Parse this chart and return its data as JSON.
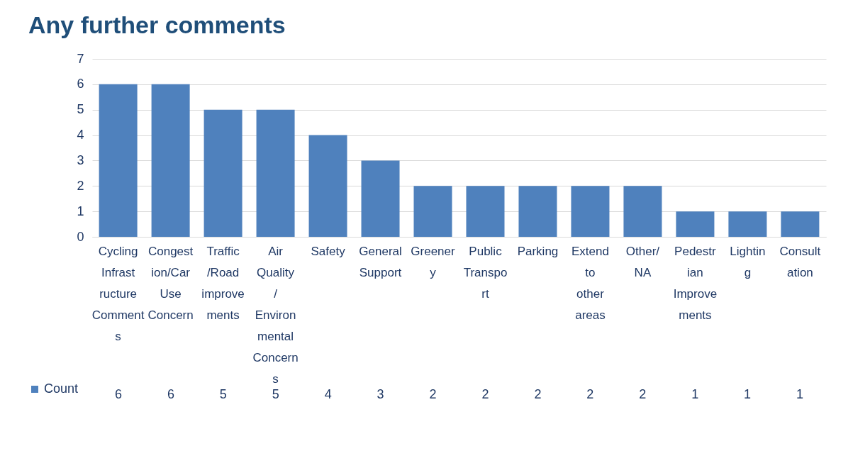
{
  "chart_data": {
    "type": "bar",
    "title": "Any further comments",
    "categories": [
      "Cycling Infrastructure Comments",
      "Congestion/Car Use Concern",
      "Traffic/Road improvements",
      "Air Quality/Environmental Concerns",
      "Safety",
      "General Support",
      "Greenery",
      "Public Transport",
      "Parking",
      "Extend to other areas",
      "Other/NA",
      "Pedestrian Improvements",
      "Lighting",
      "Consultation"
    ],
    "series": [
      {
        "name": "Count",
        "color": "#4f81bd",
        "values": [
          6,
          6,
          5,
          5,
          4,
          3,
          2,
          2,
          2,
          2,
          2,
          1,
          1,
          1
        ]
      }
    ],
    "ylim": [
      0,
      7
    ],
    "yticks": [
      0,
      1,
      2,
      3,
      4,
      5,
      6,
      7
    ],
    "grid": "y",
    "legend": "bottom left",
    "data_labels": true
  }
}
